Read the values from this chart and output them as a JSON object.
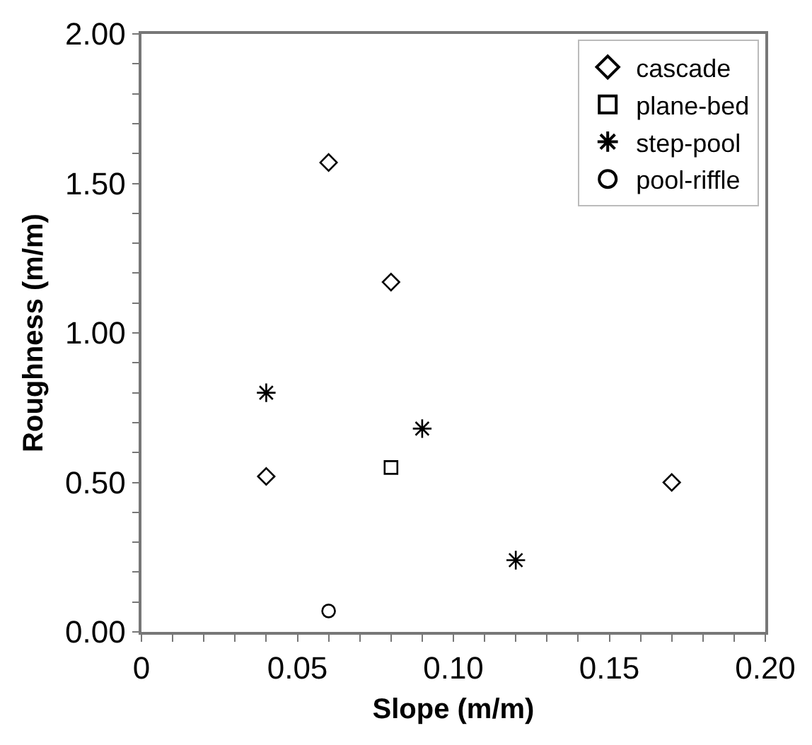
{
  "chart_data": {
    "type": "scatter",
    "xlabel": "Slope (m/m)",
    "ylabel": "Roughness (m/m)",
    "xlim": [
      0,
      0.2
    ],
    "ylim": [
      0,
      2
    ],
    "xticks": [
      0,
      {
        "value": 0.01,
        "label": null
      },
      {
        "value": 0.02,
        "label": null
      },
      {
        "value": 0.03,
        "label": null
      },
      {
        "value": 0.04,
        "label": null
      },
      0.05,
      {
        "value": 0.06,
        "label": null
      },
      {
        "value": 0.07,
        "label": null
      },
      {
        "value": 0.08,
        "label": null
      },
      {
        "value": 0.09,
        "label": null
      },
      {
        "value": 0.1,
        "label": "0.10"
      },
      {
        "value": 0.11,
        "label": null
      },
      {
        "value": 0.12,
        "label": null
      },
      {
        "value": 0.13,
        "label": null
      },
      {
        "value": 0.14,
        "label": null
      },
      0.15,
      {
        "value": 0.16,
        "label": null
      },
      {
        "value": 0.17,
        "label": null
      },
      {
        "value": 0.18,
        "label": null
      },
      {
        "value": 0.19,
        "label": null
      },
      {
        "value": 0.2,
        "label": "0.20"
      }
    ],
    "yticks": [
      {
        "value": 0,
        "label": "0.00"
      },
      {
        "value": 0.1,
        "label": null
      },
      {
        "value": 0.2,
        "label": null
      },
      {
        "value": 0.3,
        "label": null
      },
      {
        "value": 0.4,
        "label": null
      },
      {
        "value": 0.5,
        "label": "0.50"
      },
      {
        "value": 0.6,
        "label": null
      },
      {
        "value": 0.7,
        "label": null
      },
      {
        "value": 0.8,
        "label": null
      },
      {
        "value": 0.9,
        "label": null
      },
      {
        "value": 1,
        "label": "1.00"
      },
      {
        "value": 1.1,
        "label": null
      },
      {
        "value": 1.2,
        "label": null
      },
      {
        "value": 1.3,
        "label": null
      },
      {
        "value": 1.4,
        "label": null
      },
      {
        "value": 1.5,
        "label": "1.50"
      },
      {
        "value": 1.6,
        "label": null
      },
      {
        "value": 1.7,
        "label": null
      },
      {
        "value": 1.8,
        "label": null
      },
      {
        "value": 1.9,
        "label": null
      },
      {
        "value": 2,
        "label": "2.00"
      }
    ],
    "grid": false,
    "legend": "top right",
    "series": [
      {
        "name": "cascade",
        "color": "#000000",
        "marker": "diamond",
        "x": [
          0.04,
          0.06,
          0.08,
          0.17
        ],
        "values": [
          0.52,
          1.57,
          1.17,
          0.5
        ]
      },
      {
        "name": "plane-bed",
        "color": "#000000",
        "marker": "square",
        "x": [
          0.08
        ],
        "values": [
          0.55
        ]
      },
      {
        "name": "step-pool",
        "color": "#000000",
        "marker": "cross",
        "x": [
          0.04,
          0.09,
          0.12
        ],
        "values": [
          0.8,
          0.68,
          0.24
        ]
      },
      {
        "name": "pool-riffle",
        "color": "#000000",
        "marker": "circle",
        "x": [
          0.06
        ],
        "values": [
          0.07
        ]
      }
    ]
  }
}
